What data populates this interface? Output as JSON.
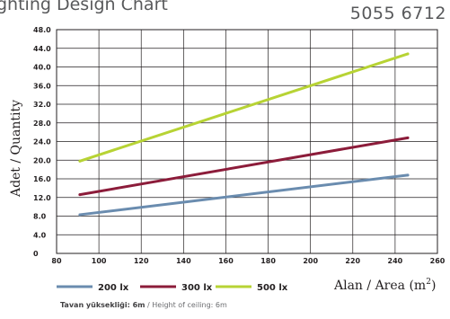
{
  "header": {
    "title": "ghting Design Chart",
    "code": "5055 6712"
  },
  "footnote": {
    "bold": "Tavan yüksekliği: 6m",
    "sep": " / ",
    "rest": "Height of ceiling: 6m"
  },
  "chart_data": {
    "type": "line",
    "ylabel": "Adet / Quantity",
    "xlabel": "Alan / Area (m",
    "xlabel_sup": "2",
    "xlabel_close": ")",
    "xlim": [
      80,
      260
    ],
    "ylim": [
      0,
      48
    ],
    "x_ticks": [
      "80",
      "100",
      "120",
      "140",
      "160",
      "180",
      "200",
      "220",
      "240",
      "260"
    ],
    "y_ticks": [
      "0",
      "4.0",
      "8.0",
      "12.0",
      "16.0",
      "20.0",
      "24.0",
      "28.0",
      "32.0",
      "36.0",
      "40.0",
      "44.0",
      "48.0"
    ],
    "grid": true,
    "legend_position": "bottom",
    "series": [
      {
        "name": "200 lx",
        "color": "#6a8caf",
        "x": [
          91,
          246
        ],
        "y": [
          8.3,
          16.8
        ]
      },
      {
        "name": "300 lx",
        "color": "#8c1c3a",
        "x": [
          91,
          246
        ],
        "y": [
          12.6,
          24.8
        ]
      },
      {
        "name": "500 lx",
        "color": "#b7d334",
        "x": [
          91,
          246
        ],
        "y": [
          19.8,
          42.8
        ]
      }
    ]
  }
}
